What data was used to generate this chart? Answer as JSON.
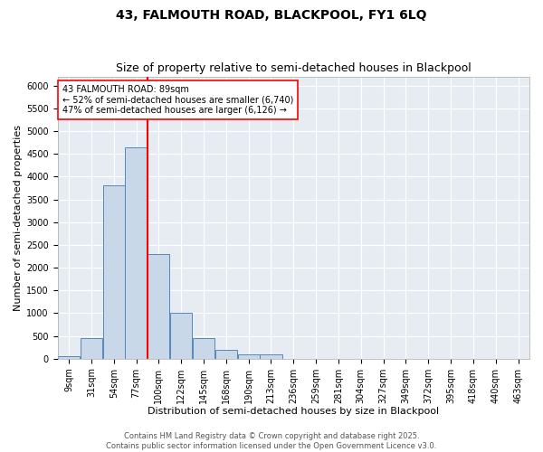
{
  "title1": "43, FALMOUTH ROAD, BLACKPOOL, FY1 6LQ",
  "title2": "Size of property relative to semi-detached houses in Blackpool",
  "xlabel": "Distribution of semi-detached houses by size in Blackpool",
  "ylabel": "Number of semi-detached properties",
  "bin_labels": [
    "9sqm",
    "31sqm",
    "54sqm",
    "77sqm",
    "100sqm",
    "122sqm",
    "145sqm",
    "168sqm",
    "190sqm",
    "213sqm",
    "236sqm",
    "259sqm",
    "281sqm",
    "304sqm",
    "327sqm",
    "349sqm",
    "372sqm",
    "395sqm",
    "418sqm",
    "440sqm",
    "463sqm"
  ],
  "bar_heights": [
    50,
    450,
    3800,
    4650,
    2300,
    1000,
    450,
    200,
    100,
    100,
    0,
    0,
    0,
    0,
    0,
    0,
    0,
    0,
    0,
    0,
    0
  ],
  "bar_color": "#c8d8e8",
  "bar_edge_color": "#5588bb",
  "bar_edge_width": 0.7,
  "red_line_bin": 3.6,
  "annotation_text_line1": "43 FALMOUTH ROAD: 89sqm",
  "annotation_text_line2": "← 52% of semi-detached houses are smaller (6,740)",
  "annotation_text_line3": "47% of semi-detached houses are larger (6,126) →",
  "ylim_max": 6200,
  "yticks": [
    0,
    500,
    1000,
    1500,
    2000,
    2500,
    3000,
    3500,
    4000,
    4500,
    5000,
    5500,
    6000
  ],
  "bg_color": "#e6ecf2",
  "grid_color": "#ffffff",
  "footer_line1": "Contains HM Land Registry data © Crown copyright and database right 2025.",
  "footer_line2": "Contains public sector information licensed under the Open Government Licence v3.0.",
  "title1_fontsize": 10,
  "title2_fontsize": 9,
  "xlabel_fontsize": 8,
  "ylabel_fontsize": 8,
  "tick_fontsize": 7,
  "annot_fontsize": 7,
  "footer_fontsize": 6
}
